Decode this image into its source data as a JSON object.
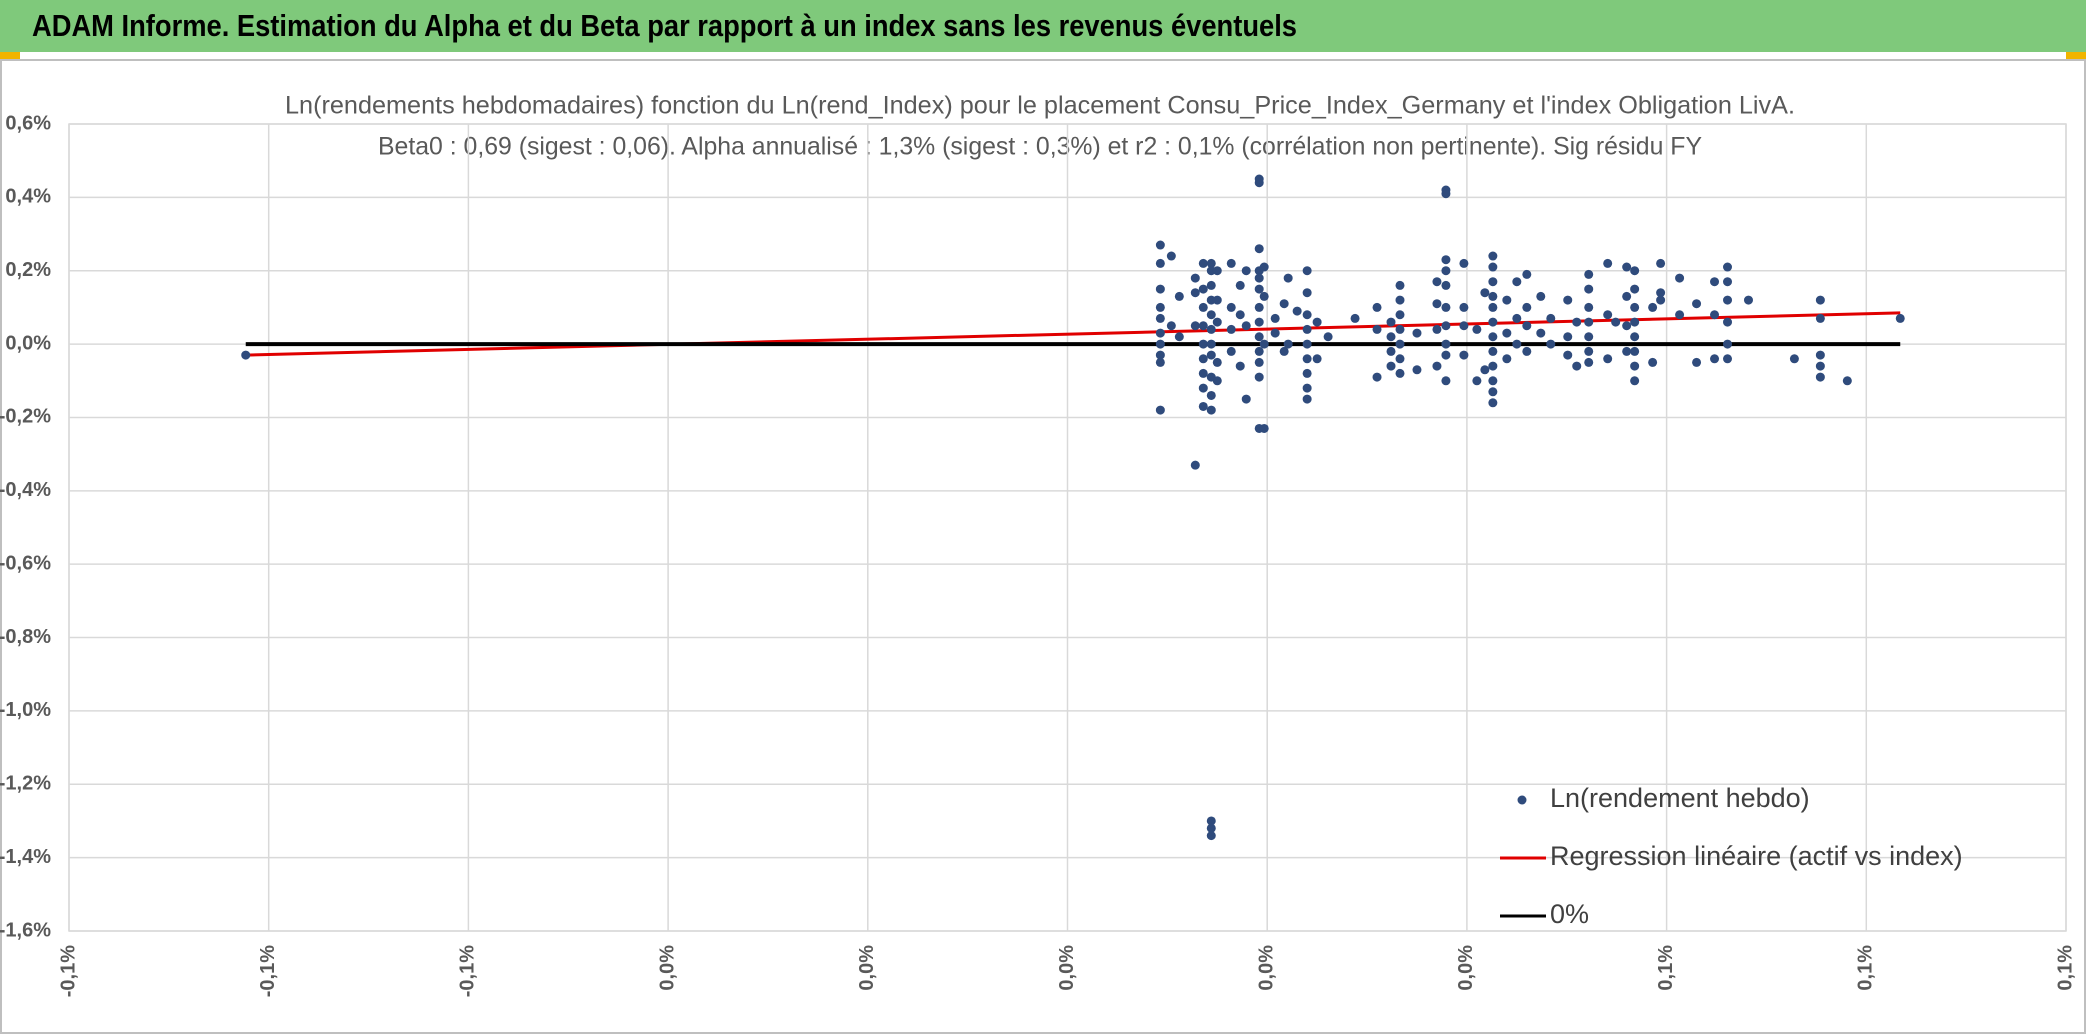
{
  "header": {
    "title": "ADAM Informe. Estimation du Alpha et du Beta par rapport à un index sans les revenus éventuels"
  },
  "chart_data": {
    "type": "scatter",
    "title": "Ln(rendements hebdomadaires) fonction du Ln(rend_Index) pour le placement Consu_Price_Index_Germany et l'index Obligation LivA.",
    "subtitle": "Beta0 : 0,69 (sigest : 0,06). Alpha annualisé : 1,3% (sigest : 0,3%) et r2 : 0,1% (corrélation non pertinente). Sig résidu FY",
    "xlim": [
      -0.1,
      0.1
    ],
    "xticks": [
      {
        "value": -0.1,
        "label": "-0,1%"
      },
      {
        "value": -0.08,
        "label": "-0,1%"
      },
      {
        "value": -0.06,
        "label": "-0,1%"
      },
      {
        "value": -0.04,
        "label": "0,0%"
      },
      {
        "value": -0.02,
        "label": "0,0%"
      },
      {
        "value": 0,
        "label": "0,0%"
      },
      {
        "value": 0.02,
        "label": "0,0%"
      },
      {
        "value": 0.04,
        "label": "0,0%"
      },
      {
        "value": 0.06,
        "label": "0,1%"
      },
      {
        "value": 0.08,
        "label": "0,1%"
      },
      {
        "value": 0.1,
        "label": "0,1%"
      }
    ],
    "ylim": [
      -1.6,
      0.6
    ],
    "yticks": [
      {
        "value": -1.6,
        "label": "-1,6%"
      },
      {
        "value": -1.4,
        "label": "-1,4%"
      },
      {
        "value": -1.2,
        "label": "-1,2%"
      },
      {
        "value": -1.0,
        "label": "-1,0%"
      },
      {
        "value": -0.8,
        "label": "-0,8%"
      },
      {
        "value": -0.6,
        "label": "-0,6%"
      },
      {
        "value": -0.4,
        "label": "-0,4%"
      },
      {
        "value": -0.2,
        "label": "-0,2%"
      },
      {
        "value": 0,
        "label": "0,0%"
      },
      {
        "value": 0.2,
        "label": "0,2%"
      },
      {
        "value": 0.4,
        "label": "0,4%"
      },
      {
        "value": 0.6,
        "label": "0,6%"
      }
    ],
    "grid": true,
    "legend": "lower right",
    "series": [
      {
        "name": "Ln(rendement hebdo)",
        "mode": "markers",
        "color": "#2f4b7c",
        "x": [
          -0.0823,
          0.0093,
          0.0093,
          0.0093,
          0.0093,
          0.0093,
          0.0093,
          0.0093,
          0.0093,
          0.0093,
          0.0093,
          0.0104,
          0.0104,
          0.0112,
          0.0112,
          0.0128,
          0.0128,
          0.0128,
          0.0128,
          0.0136,
          0.0136,
          0.0136,
          0.0136,
          0.0136,
          0.0136,
          0.0136,
          0.0136,
          0.0136,
          0.0144,
          0.0144,
          0.0144,
          0.0144,
          0.0144,
          0.0144,
          0.0144,
          0.0144,
          0.0144,
          0.0144,
          0.0144,
          0.0144,
          0.0144,
          0.0144,
          0.015,
          0.015,
          0.015,
          0.015,
          0.015,
          0.0164,
          0.0164,
          0.0164,
          0.0164,
          0.0173,
          0.0173,
          0.0173,
          0.0179,
          0.0179,
          0.0179,
          0.0192,
          0.0192,
          0.0192,
          0.0192,
          0.0192,
          0.0192,
          0.0192,
          0.0192,
          0.0192,
          0.0192,
          0.0192,
          0.0192,
          0.0192,
          0.0197,
          0.0197,
          0.0197,
          0.0197,
          0.0208,
          0.0208,
          0.0217,
          0.0217,
          0.0221,
          0.0221,
          0.023,
          0.024,
          0.024,
          0.024,
          0.024,
          0.024,
          0.024,
          0.024,
          0.024,
          0.024,
          0.025,
          0.025,
          0.0261,
          0.0288,
          0.031,
          0.031,
          0.031,
          0.0324,
          0.0324,
          0.0324,
          0.0324,
          0.0333,
          0.0333,
          0.0333,
          0.0333,
          0.0333,
          0.0333,
          0.0333,
          0.035,
          0.035,
          0.037,
          0.037,
          0.037,
          0.037,
          0.0379,
          0.0379,
          0.0379,
          0.0379,
          0.0379,
          0.0379,
          0.0379,
          0.0379,
          0.0379,
          0.0379,
          0.0397,
          0.0397,
          0.0397,
          0.0397,
          0.041,
          0.041,
          0.0418,
          0.0418,
          0.0426,
          0.0426,
          0.0426,
          0.0426,
          0.0426,
          0.0426,
          0.0426,
          0.0426,
          0.0426,
          0.0426,
          0.0426,
          0.0426,
          0.044,
          0.044,
          0.044,
          0.045,
          0.045,
          0.045,
          0.046,
          0.046,
          0.046,
          0.046,
          0.0474,
          0.0474,
          0.0484,
          0.0484,
          0.0501,
          0.0501,
          0.0501,
          0.051,
          0.051,
          0.0522,
          0.0522,
          0.0522,
          0.0522,
          0.0522,
          0.0522,
          0.0522,
          0.0541,
          0.0541,
          0.0541,
          0.0549,
          0.056,
          0.056,
          0.056,
          0.056,
          0.0568,
          0.0568,
          0.0568,
          0.0568,
          0.0568,
          0.0568,
          0.0568,
          0.0568,
          0.0586,
          0.0586,
          0.0594,
          0.0594,
          0.0594,
          0.0613,
          0.0613,
          0.063,
          0.063,
          0.0648,
          0.0648,
          0.0648,
          0.0661,
          0.0661,
          0.0661,
          0.0661,
          0.0661,
          0.0661,
          0.0682,
          0.0728,
          0.0754,
          0.0754,
          0.0754,
          0.0754,
          0.0754,
          0.0781,
          0.0834
        ],
        "values": [
          -0.03,
          0.27,
          0.22,
          0.15,
          0.1,
          0.07,
          0.03,
          0,
          -0.03,
          -0.05,
          -0.18,
          0.24,
          0.05,
          0.13,
          0.02,
          0.18,
          0.14,
          0.05,
          -0.33,
          0.22,
          0.15,
          0.1,
          0.05,
          0,
          -0.04,
          -0.08,
          -0.12,
          -0.17,
          0.22,
          0.2,
          0.16,
          0.12,
          0.08,
          0.04,
          0,
          -0.03,
          -0.09,
          -0.14,
          -0.18,
          -1.3,
          -1.32,
          -1.34,
          0.2,
          0.12,
          0.06,
          -0.05,
          -0.1,
          0.22,
          0.1,
          0.04,
          -0.02,
          0.16,
          0.08,
          -0.06,
          0.2,
          0.05,
          -0.15,
          0.45,
          0.44,
          0.26,
          0.2,
          0.18,
          0.15,
          0.1,
          0.06,
          0.02,
          -0.02,
          -0.05,
          -0.09,
          -0.23,
          0.21,
          0.13,
          0,
          -0.23,
          0.07,
          0.03,
          0.11,
          -0.02,
          0.18,
          0,
          0.09,
          0.2,
          0.14,
          0.08,
          0.04,
          0,
          -0.04,
          -0.08,
          -0.12,
          -0.15,
          0.06,
          -0.04,
          0.02,
          0.07,
          0.1,
          0.04,
          -0.09,
          0.06,
          0.02,
          -0.02,
          -0.06,
          0.16,
          0.12,
          0.08,
          0.04,
          0,
          -0.04,
          -0.08,
          0.03,
          -0.07,
          0.17,
          0.11,
          0.04,
          -0.06,
          0.42,
          0.41,
          0.23,
          0.2,
          0.16,
          0.1,
          0.05,
          0,
          -0.03,
          -0.1,
          0.22,
          0.1,
          0.05,
          -0.03,
          0.04,
          -0.1,
          0.14,
          -0.07,
          0.24,
          0.21,
          0.17,
          0.13,
          0.1,
          0.06,
          0.02,
          -0.02,
          -0.06,
          -0.1,
          -0.13,
          -0.16,
          0.12,
          0.03,
          -0.04,
          0.17,
          0.07,
          0,
          0.19,
          0.1,
          0.05,
          -0.02,
          0.13,
          0.03,
          0.07,
          0,
          0.12,
          0.02,
          -0.03,
          0.06,
          -0.06,
          0.19,
          0.15,
          0.1,
          0.06,
          0.02,
          -0.02,
          -0.05,
          0.22,
          0.08,
          -0.04,
          0.06,
          0.21,
          0.13,
          0.05,
          -0.02,
          0.2,
          0.15,
          0.1,
          0.06,
          0.02,
          -0.02,
          -0.06,
          -0.1,
          0.1,
          -0.05,
          0.22,
          0.14,
          0.12,
          0.18,
          0.08,
          0.11,
          -0.05,
          0.17,
          0.08,
          -0.04,
          0.21,
          0.17,
          0.12,
          0.06,
          0,
          -0.04,
          0.12,
          -0.04,
          0.12,
          0.07,
          -0.03,
          -0.06,
          -0.09,
          -0.1,
          0.07
        ]
      },
      {
        "name": "Regression linéaire (actif vs index)",
        "mode": "line",
        "color": "#e00000",
        "x": [
          -0.0823,
          0.0834
        ],
        "values": [
          -0.03,
          0.085
        ]
      },
      {
        "name": "0%",
        "mode": "line",
        "color": "#000000",
        "x": [
          -0.0823,
          0.0834
        ],
        "values": [
          0,
          0
        ]
      }
    ]
  }
}
